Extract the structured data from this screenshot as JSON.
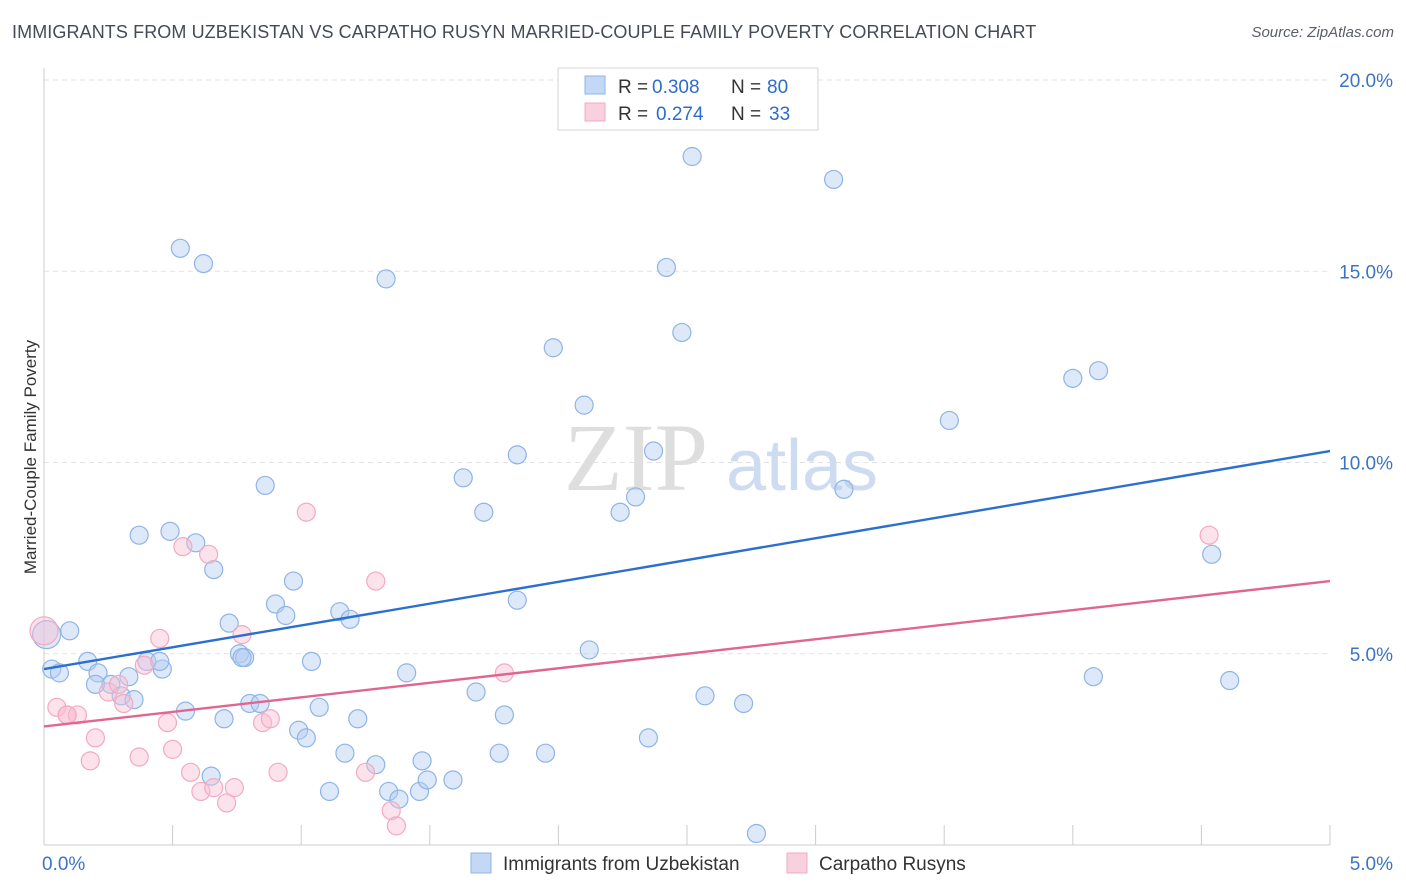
{
  "title": "IMMIGRANTS FROM UZBEKISTAN VS CARPATHO RUSYN MARRIED-COUPLE FAMILY POVERTY CORRELATION CHART",
  "source": "Source: ZipAtlas.com",
  "watermark": {
    "zip": "ZIP",
    "atlas": "atlas"
  },
  "chart_data": {
    "type": "scatter",
    "ylabel": "Married-Couple Family Poverty",
    "xlim": [
      0,
      5
    ],
    "ylim": [
      0,
      20
    ],
    "x_tick_labels": [
      {
        "value": 0,
        "label": "0.0%"
      },
      {
        "value": 5,
        "label": "5.0%"
      }
    ],
    "y_tick_labels": [
      {
        "value": 5,
        "label": "5.0%"
      },
      {
        "value": 10,
        "label": "10.0%"
      },
      {
        "value": 15,
        "label": "15.0%"
      },
      {
        "value": 20,
        "label": "20.0%"
      }
    ],
    "grid": "horizontal-dashed",
    "legend_placement": "top-center",
    "stats": [
      {
        "r_label": "R =",
        "r": "0.308",
        "n_label": "N =",
        "n": "80"
      },
      {
        "r_label": "R =",
        "r": "0.274",
        "n_label": "N =",
        "n": "33"
      }
    ],
    "series": [
      {
        "name": "Immigrants from Uzbekistan",
        "color": "#8fb4e8",
        "line_color": "#2b6fd0",
        "trend": [
          [
            0,
            4.6
          ],
          [
            5,
            10.3
          ]
        ],
        "points": [
          [
            0.01,
            5.5
          ],
          [
            0.03,
            4.6
          ],
          [
            0.06,
            4.5
          ],
          [
            0.1,
            5.6
          ],
          [
            0.17,
            4.8
          ],
          [
            0.21,
            4.5
          ],
          [
            0.26,
            4.2
          ],
          [
            0.3,
            3.9
          ],
          [
            0.33,
            4.4
          ],
          [
            0.37,
            8.1
          ],
          [
            0.4,
            4.8
          ],
          [
            0.46,
            4.6
          ],
          [
            0.49,
            8.2
          ],
          [
            0.53,
            15.6
          ],
          [
            0.55,
            3.5
          ],
          [
            0.59,
            7.9
          ],
          [
            0.62,
            15.2
          ],
          [
            0.65,
            1.8
          ],
          [
            0.66,
            7.2
          ],
          [
            0.7,
            3.3
          ],
          [
            0.72,
            5.8
          ],
          [
            0.76,
            5.0
          ],
          [
            0.78,
            4.9
          ],
          [
            0.8,
            3.7
          ],
          [
            0.84,
            3.7
          ],
          [
            0.86,
            9.4
          ],
          [
            0.9,
            6.3
          ],
          [
            0.94,
            6.0
          ],
          [
            0.97,
            6.9
          ],
          [
            0.99,
            3.0
          ],
          [
            1.02,
            2.8
          ],
          [
            1.04,
            4.8
          ],
          [
            1.07,
            3.6
          ],
          [
            1.11,
            1.4
          ],
          [
            1.15,
            6.1
          ],
          [
            1.17,
            2.4
          ],
          [
            1.19,
            5.9
          ],
          [
            1.22,
            3.3
          ],
          [
            1.29,
            2.1
          ],
          [
            1.33,
            14.8
          ],
          [
            1.34,
            1.4
          ],
          [
            1.38,
            1.2
          ],
          [
            1.41,
            4.5
          ],
          [
            1.46,
            1.4
          ],
          [
            1.47,
            2.2
          ],
          [
            1.49,
            1.7
          ],
          [
            1.59,
            1.7
          ],
          [
            1.63,
            9.6
          ],
          [
            1.68,
            4.0
          ],
          [
            1.71,
            8.7
          ],
          [
            1.77,
            2.4
          ],
          [
            1.79,
            3.4
          ],
          [
            1.84,
            10.2
          ],
          [
            1.84,
            6.4
          ],
          [
            1.95,
            2.4
          ],
          [
            1.98,
            13.0
          ],
          [
            2.1,
            11.5
          ],
          [
            2.12,
            5.1
          ],
          [
            2.24,
            8.7
          ],
          [
            2.3,
            9.1
          ],
          [
            2.35,
            2.8
          ],
          [
            2.37,
            10.3
          ],
          [
            2.42,
            15.1
          ],
          [
            2.48,
            13.4
          ],
          [
            2.52,
            18.0
          ],
          [
            2.57,
            3.9
          ],
          [
            2.72,
            3.7
          ],
          [
            2.77,
            0.3
          ],
          [
            3.07,
            17.4
          ],
          [
            3.11,
            9.3
          ],
          [
            3.52,
            11.1
          ],
          [
            4.0,
            12.2
          ],
          [
            4.08,
            4.4
          ],
          [
            4.1,
            12.4
          ],
          [
            4.54,
            7.6
          ],
          [
            4.61,
            4.3
          ],
          [
            0.2,
            4.2
          ],
          [
            0.77,
            4.9
          ],
          [
            0.45,
            4.8
          ],
          [
            0.35,
            3.8
          ]
        ]
      },
      {
        "name": "Carpatho Rusyns",
        "color": "#f4a9c0",
        "line_color": "#e0668f",
        "trend": [
          [
            0,
            3.1
          ],
          [
            5,
            6.9
          ]
        ],
        "points": [
          [
            0.0,
            5.6
          ],
          [
            0.05,
            3.6
          ],
          [
            0.09,
            3.4
          ],
          [
            0.13,
            3.4
          ],
          [
            0.18,
            2.2
          ],
          [
            0.2,
            2.8
          ],
          [
            0.25,
            4.0
          ],
          [
            0.29,
            4.2
          ],
          [
            0.31,
            3.7
          ],
          [
            0.37,
            2.3
          ],
          [
            0.39,
            4.7
          ],
          [
            0.45,
            5.4
          ],
          [
            0.48,
            3.2
          ],
          [
            0.5,
            2.5
          ],
          [
            0.54,
            7.8
          ],
          [
            0.57,
            1.9
          ],
          [
            0.61,
            1.4
          ],
          [
            0.64,
            7.6
          ],
          [
            0.66,
            1.5
          ],
          [
            0.71,
            1.1
          ],
          [
            0.74,
            1.5
          ],
          [
            0.77,
            5.5
          ],
          [
            0.85,
            3.2
          ],
          [
            0.88,
            3.3
          ],
          [
            0.91,
            1.9
          ],
          [
            1.02,
            8.7
          ],
          [
            1.25,
            1.9
          ],
          [
            1.29,
            6.9
          ],
          [
            1.35,
            0.9
          ],
          [
            1.37,
            0.5
          ],
          [
            1.79,
            4.5
          ],
          [
            4.53,
            8.1
          ],
          [
            0.09,
            3.4
          ]
        ]
      }
    ]
  }
}
